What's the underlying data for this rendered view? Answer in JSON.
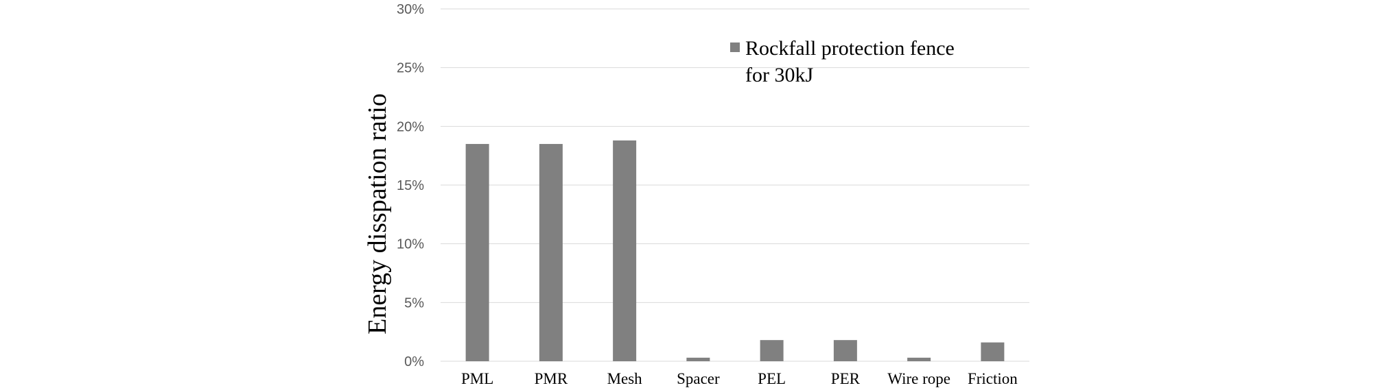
{
  "chart_data": {
    "type": "bar",
    "ylabel": "Energy disspation ratio",
    "xlabel": "",
    "ylim": [
      0,
      30
    ],
    "y_unit": "%",
    "y_ticks": [
      "0%",
      "5%",
      "10%",
      "15%",
      "20%",
      "25%",
      "30%"
    ],
    "y_tick_values": [
      0,
      5,
      10,
      15,
      20,
      25,
      30
    ],
    "grid": true,
    "legend_position": "top-right",
    "categories": [
      "PML",
      "PMR",
      "Mesh",
      "Spacer",
      "PEL",
      "PER",
      "Wire rope",
      "Friction"
    ],
    "series": [
      {
        "name": "Rockfall protection fence for 30kJ",
        "legend_lines": [
          "Rockfall protection fence",
          "for 30kJ"
        ],
        "color": "#808080",
        "values": [
          18.5,
          18.5,
          18.8,
          0.3,
          1.8,
          1.8,
          0.3,
          1.6
        ]
      }
    ],
    "gridline_color": "#d9d9d9"
  }
}
